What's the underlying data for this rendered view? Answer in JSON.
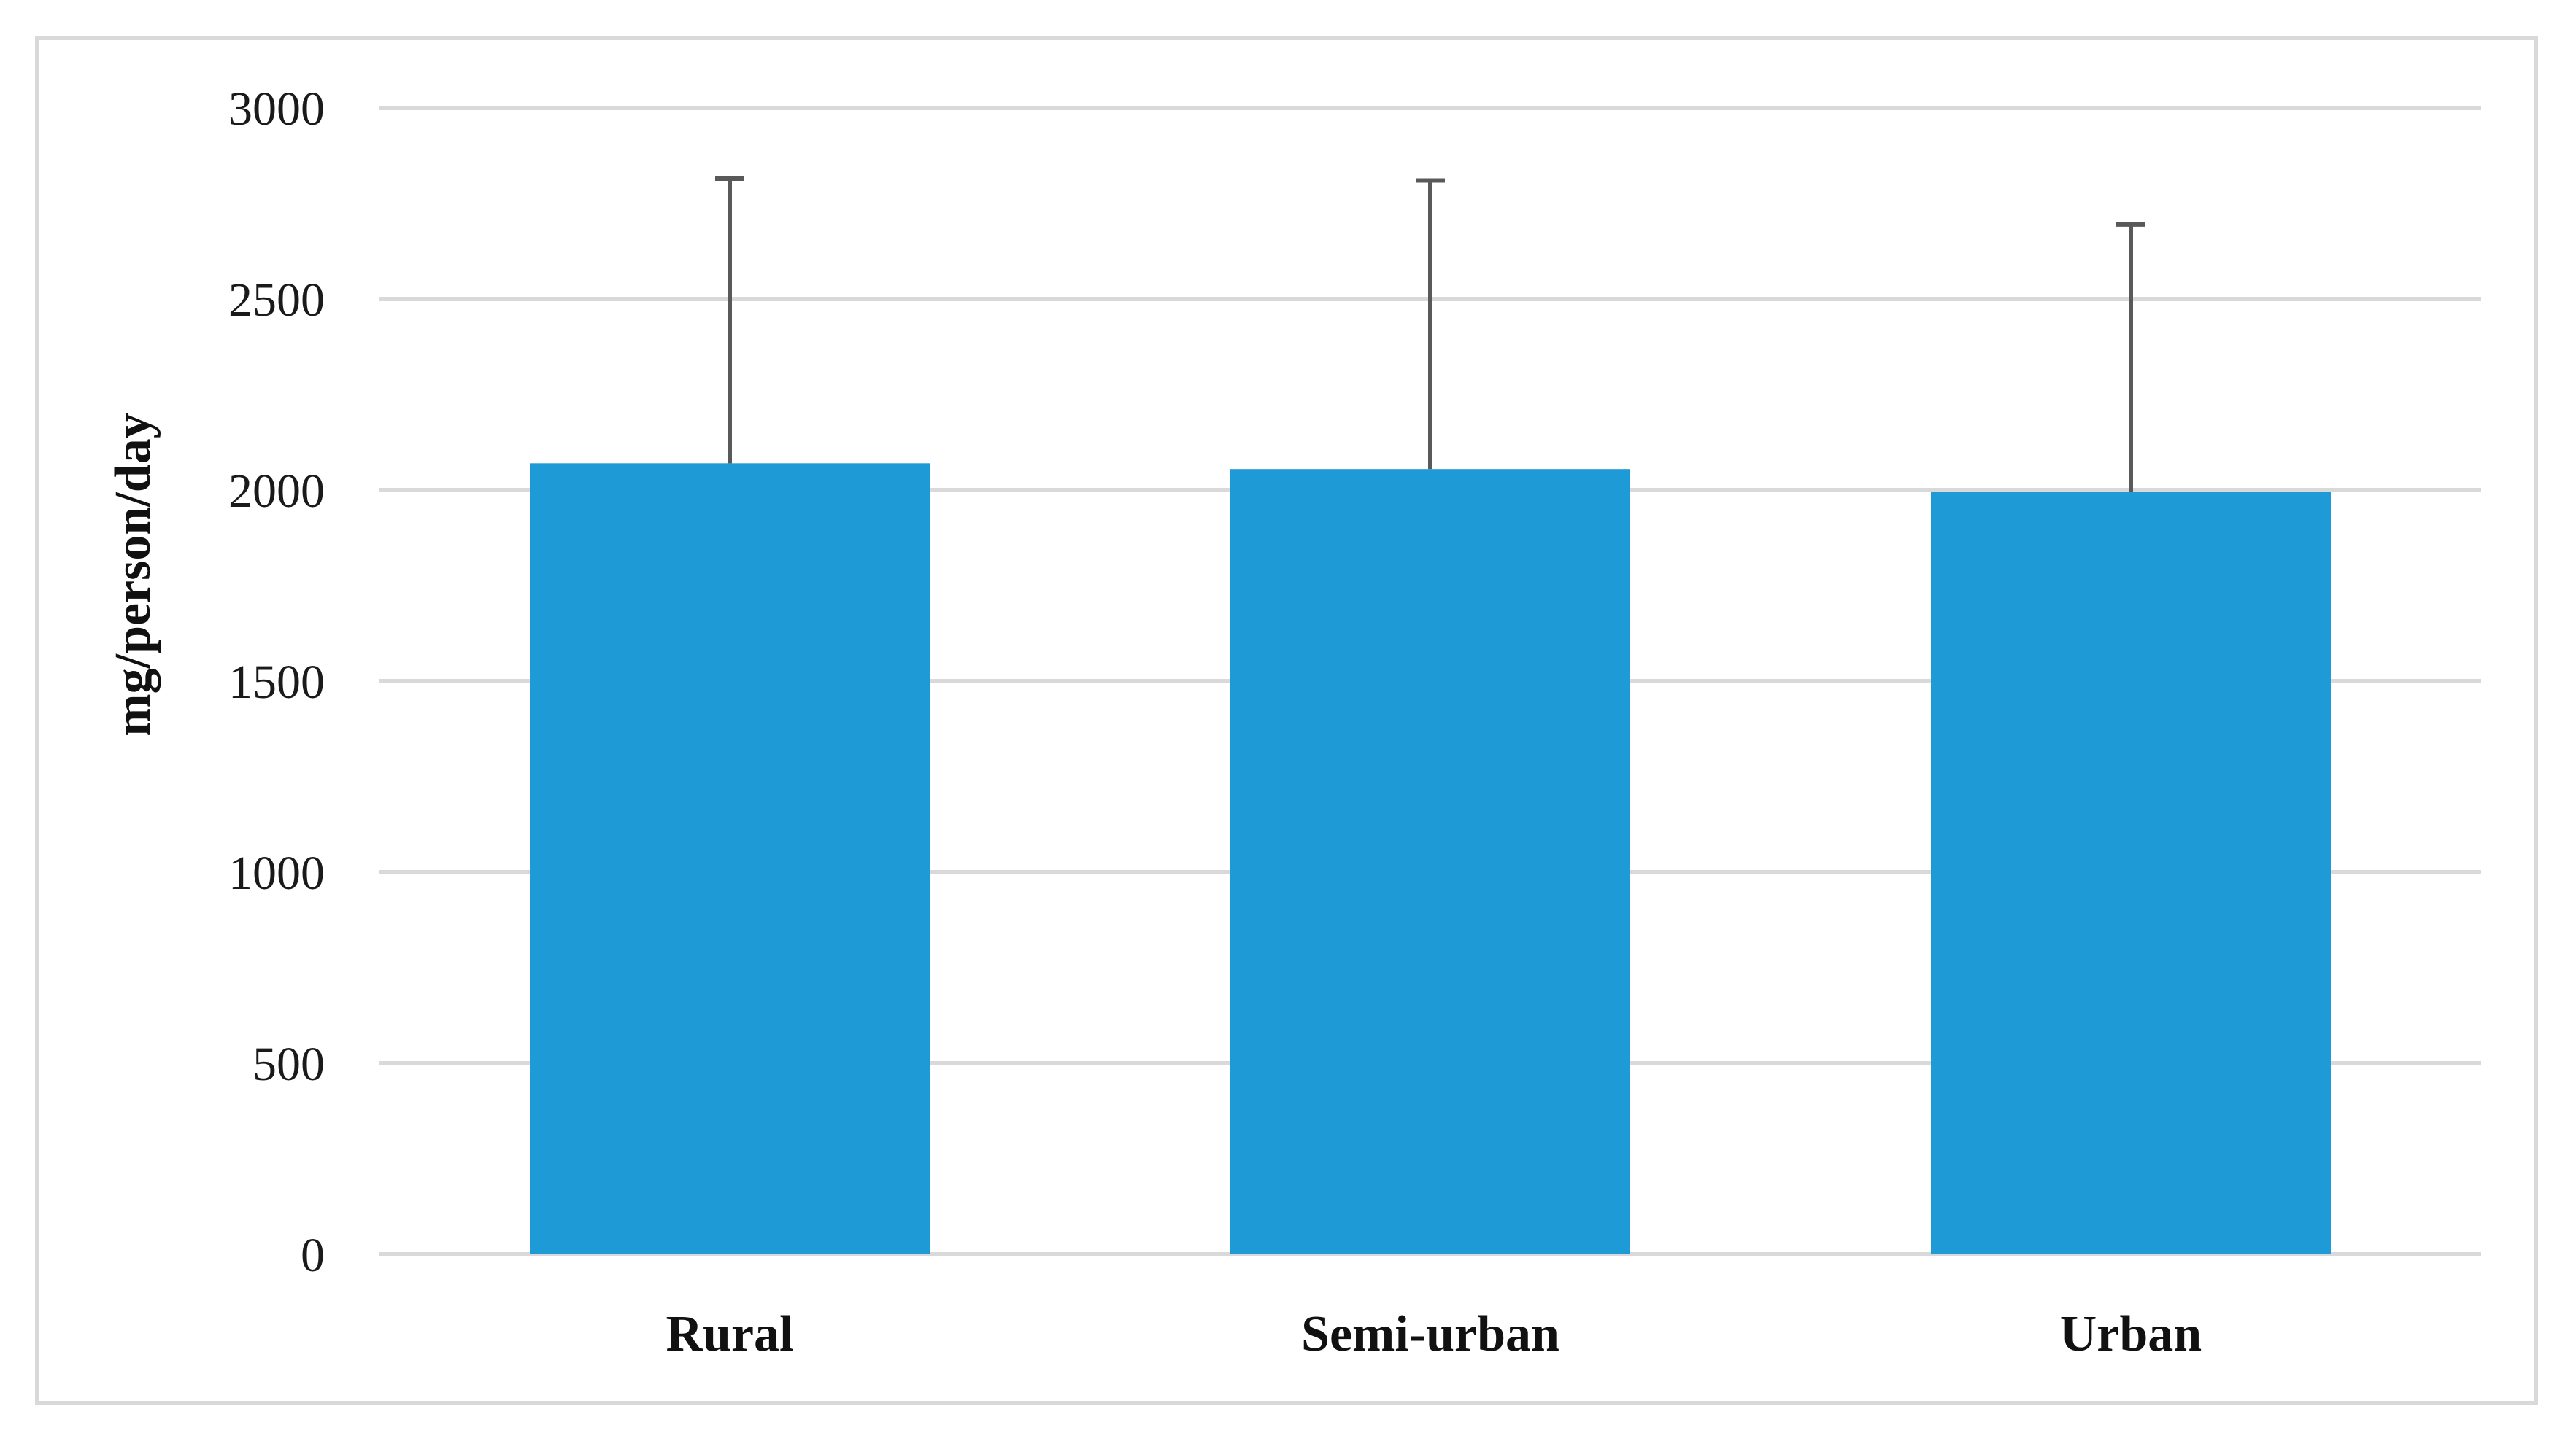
{
  "chart_data": {
    "type": "bar",
    "title": "",
    "xlabel": "",
    "ylabel": "mg/person/day",
    "categories": [
      "Rural",
      "Semi-urban",
      "Urban"
    ],
    "values": [
      2070,
      2055,
      1995
    ],
    "error_upper": [
      2815,
      2810,
      2695
    ],
    "yticks": [
      0,
      500,
      1000,
      1500,
      2000,
      2500,
      3000
    ],
    "ytick_labels": [
      "0",
      "500",
      "1000",
      "1500",
      "2000",
      "2500",
      "3000"
    ],
    "ylim": [
      0,
      3000
    ],
    "grid": true,
    "legend": "none",
    "bar_color": "#1e9bd7",
    "error_bar_color": "#595959",
    "grid_color": "#d9d9d9"
  }
}
